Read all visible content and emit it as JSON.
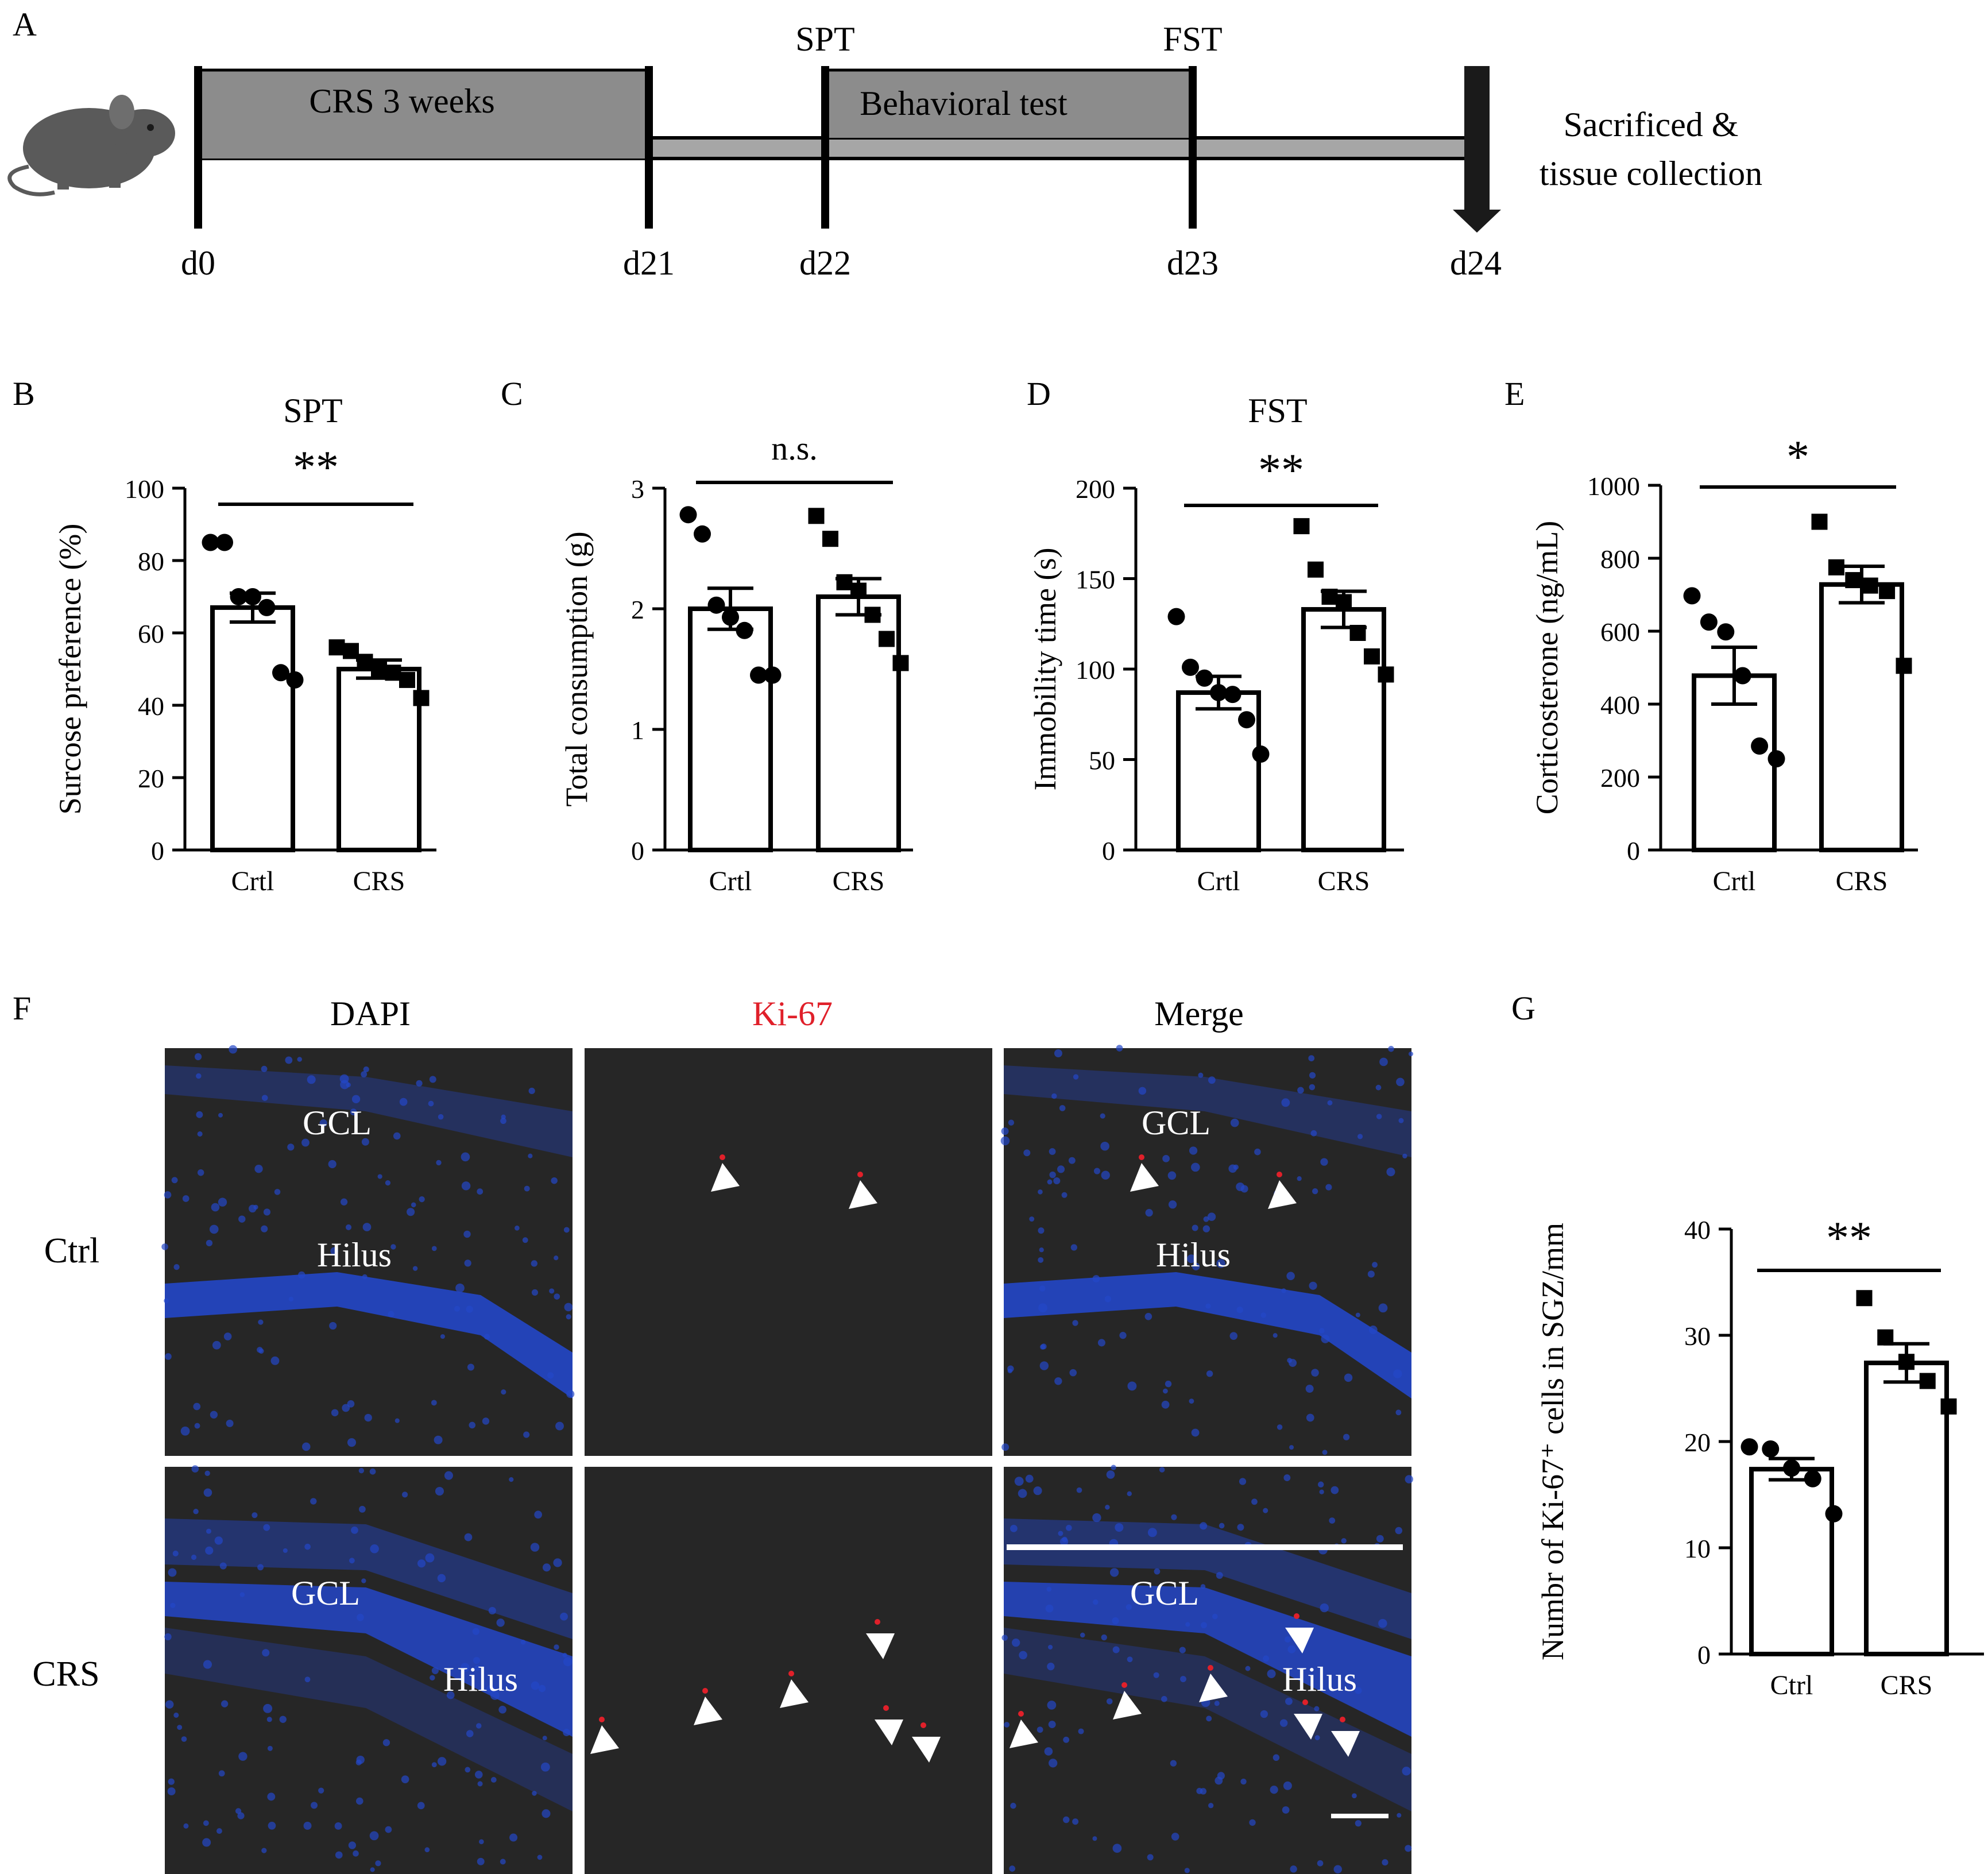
{
  "colors": {
    "ink": "#000000",
    "timeline_band": "#8c8c8c",
    "timeline_track": "#a6a6a6",
    "mouse": "#5a5a5a",
    "micro_bg": "#262626",
    "dapi_blue": "#2447c8",
    "ki67_red": "#e0202a",
    "arrow_white": "#ffffff"
  },
  "panel_labels": [
    "A",
    "B",
    "C",
    "D",
    "E",
    "F",
    "G"
  ],
  "timeline": {
    "icon": "mouse-icon",
    "band_crs": "CRS 3 weeks",
    "band_behavior": "Behavioral test",
    "marker_spt": "SPT",
    "marker_fst": "FST",
    "days": [
      "d0",
      "d21",
      "d22",
      "d23",
      "d24"
    ],
    "end_line1": "Sacrificed &",
    "end_line2": "tissue collection"
  },
  "microscopy": {
    "columns": [
      "DAPI",
      "Ki-67",
      "Merge"
    ],
    "rows": [
      "Ctrl",
      "CRS"
    ],
    "region_gcl": "GCL",
    "region_hilus": "Hilus",
    "scale_bar_icon": "scale-bar-icon"
  },
  "chart_data": [
    {
      "id": "B",
      "type": "bar",
      "title": "SPT",
      "ylabel": "Surcose preference (%)",
      "categories": [
        "Crtl",
        "CRS"
      ],
      "ylim": [
        0,
        100
      ],
      "yticks": [
        "0",
        "20",
        "40",
        "60",
        "80",
        "100"
      ],
      "tick_values": [
        0,
        20,
        40,
        60,
        80,
        100
      ],
      "means": [
        67,
        50
      ],
      "sem": [
        4,
        2.5
      ],
      "points": [
        [
          85,
          85,
          70,
          70,
          67,
          49,
          47
        ],
        [
          56,
          55,
          52,
          50,
          49,
          47,
          42
        ]
      ],
      "markers": [
        "circle",
        "square"
      ],
      "significance": "**"
    },
    {
      "id": "C",
      "type": "bar",
      "title": "",
      "ylabel": "Total consumption (g)",
      "categories": [
        "Crtl",
        "CRS"
      ],
      "ylim": [
        0,
        3
      ],
      "yticks": [
        "0",
        "1",
        "2",
        "3"
      ],
      "tick_values": [
        0,
        1,
        2,
        3
      ],
      "means": [
        2.0,
        2.1
      ],
      "sem": [
        0.17,
        0.15
      ],
      "points": [
        [
          2.78,
          2.62,
          2.03,
          1.93,
          1.82,
          1.45,
          1.45
        ],
        [
          2.77,
          2.58,
          2.22,
          2.15,
          1.95,
          1.75,
          1.55
        ]
      ],
      "markers": [
        "circle",
        "square"
      ],
      "significance": "n.s."
    },
    {
      "id": "D",
      "type": "bar",
      "title": "FST",
      "ylabel": "Immobility time (s)",
      "categories": [
        "Crtl",
        "CRS"
      ],
      "ylim": [
        0,
        200
      ],
      "yticks": [
        "0",
        "50",
        "100",
        "150",
        "200"
      ],
      "tick_values": [
        0,
        50,
        100,
        150,
        200
      ],
      "means": [
        87,
        133
      ],
      "sem": [
        9,
        10
      ],
      "points": [
        [
          129,
          101,
          95,
          87,
          86,
          72,
          53
        ],
        [
          179,
          155,
          140,
          137,
          120,
          107,
          97
        ]
      ],
      "markers": [
        "circle",
        "square"
      ],
      "significance": "**"
    },
    {
      "id": "E",
      "type": "bar",
      "title": "",
      "ylabel": "Corticosterone (ng/mL)",
      "categories": [
        "Crtl",
        "CRS"
      ],
      "ylim": [
        0,
        1000
      ],
      "yticks": [
        "0",
        "200",
        "400",
        "600",
        "800",
        "1000"
      ],
      "tick_values": [
        0,
        200,
        400,
        600,
        800,
        1000
      ],
      "means": [
        478,
        728
      ],
      "sem": [
        78,
        50
      ],
      "points": [
        [
          697,
          625,
          598,
          478,
          285,
          250
        ],
        [
          900,
          775,
          740,
          725,
          710,
          505
        ]
      ],
      "markers": [
        "circle",
        "square"
      ],
      "significance": "*"
    },
    {
      "id": "G",
      "type": "bar",
      "title": "",
      "ylabel": "Numbr of Ki-67⁺ cells in SGZ/mm",
      "categories": [
        "Ctrl",
        "CRS"
      ],
      "ylim": [
        0,
        40
      ],
      "yticks": [
        "0",
        "10",
        "20",
        "30",
        "40"
      ],
      "tick_values": [
        0,
        10,
        20,
        30,
        40
      ],
      "means": [
        17.4,
        27.4
      ],
      "sem": [
        1.0,
        1.8
      ],
      "points": [
        [
          19.5,
          19.3,
          17.5,
          16.5,
          13.2
        ],
        [
          33.5,
          29.8,
          27.5,
          25.7,
          23.3
        ]
      ],
      "markers": [
        "circle",
        "square"
      ],
      "significance": "**"
    }
  ]
}
